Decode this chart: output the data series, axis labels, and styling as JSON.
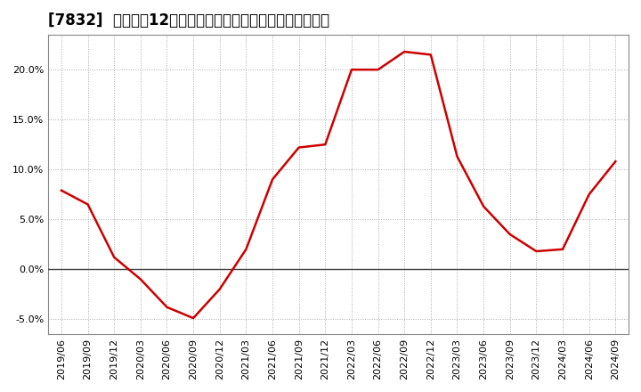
{
  "title": "[7832]  売上高の12か月移動合計の対前年同期増減率の推移",
  "line_color": "#cc0000",
  "background_color": "#ffffff",
  "plot_bg_color": "#ffffff",
  "grid_color": "#aaaaaa",
  "zero_line_color": "#444444",
  "dates": [
    "2019/06",
    "2019/09",
    "2019/12",
    "2020/03",
    "2020/06",
    "2020/09",
    "2020/12",
    "2021/03",
    "2021/06",
    "2021/09",
    "2021/12",
    "2022/03",
    "2022/06",
    "2022/09",
    "2022/12",
    "2023/03",
    "2023/06",
    "2023/09",
    "2023/12",
    "2024/03",
    "2024/06",
    "2024/09"
  ],
  "values": [
    0.079,
    0.065,
    0.012,
    -0.01,
    -0.038,
    -0.049,
    -0.02,
    0.02,
    0.09,
    0.122,
    0.125,
    0.2,
    0.2,
    0.218,
    0.215,
    0.113,
    0.063,
    0.035,
    0.018,
    0.02,
    0.075,
    0.108
  ],
  "ylim": [
    -0.065,
    0.235
  ],
  "yticks": [
    -0.05,
    0.0,
    0.05,
    0.1,
    0.15,
    0.2
  ],
  "title_fontsize": 12,
  "tick_fontsize": 8,
  "line_width": 1.8
}
